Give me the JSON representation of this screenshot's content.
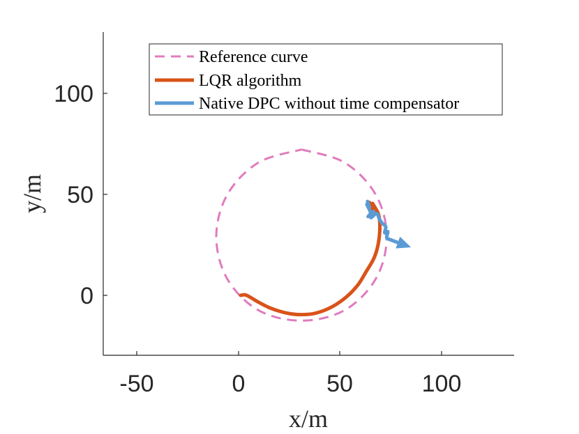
{
  "chart_data": {
    "type": "line",
    "title": "",
    "xlabel": "x/m",
    "ylabel": "y/m",
    "xlim": [
      -67,
      135
    ],
    "ylim": [
      -30,
      130
    ],
    "xticks": [
      -50,
      0,
      50,
      100
    ],
    "yticks": [
      0,
      50,
      100
    ],
    "xtick_labels": [
      "-50",
      "0",
      "50",
      "100"
    ],
    "ytick_labels": [
      "0",
      "50",
      "100"
    ],
    "grid": false,
    "legend_position": "top",
    "series": [
      {
        "name": "Reference curve",
        "style": "dashed",
        "color": "#e07bbd",
        "x": [
          31,
          52.3,
          67.6,
          73.0,
          67.6,
          52.3,
          31,
          9.7,
          -5.6,
          -11.0,
          -5.6,
          9.7,
          31
        ],
        "y": [
          72.2,
          65.7,
          49.8,
          29.0,
          8.2,
          -7.3,
          -12.5,
          -7.3,
          8.2,
          29.0,
          49.8,
          65.7,
          72.2
        ]
      },
      {
        "name": "LQR algorithm",
        "style": "solid",
        "color": "#d95319",
        "x": [
          1,
          3,
          5,
          10,
          15,
          20,
          25,
          30,
          36,
          42,
          48,
          54,
          59,
          63,
          66.5,
          68.5,
          69.5,
          69.5,
          68.8,
          67.5,
          66,
          68,
          65.5,
          64.5
        ],
        "y": [
          0,
          0.3,
          -0.5,
          -3.5,
          -6,
          -7.8,
          -9,
          -9.5,
          -9.2,
          -7.5,
          -4.5,
          0,
          5.5,
          12,
          18,
          24,
          31,
          37,
          40.5,
          43,
          45.5,
          41.5,
          43,
          46
        ]
      },
      {
        "name": "Native DPC without time compensator",
        "style": "solid",
        "color": "#5b9bd5",
        "x": [
          63.5,
          64.5,
          63.2,
          65,
          63.8,
          66.5,
          65.2,
          68,
          69.5,
          71,
          72.5,
          72,
          73.5,
          73,
          75,
          77.5,
          80.5,
          83
        ],
        "y": [
          46.5,
          43.5,
          45,
          41,
          39,
          41.5,
          38.5,
          40.5,
          37.5,
          35.5,
          34,
          31,
          31.5,
          28.5,
          27.5,
          26.5,
          25.5,
          24.5
        ]
      }
    ],
    "legend_entries": [
      "Reference curve",
      "LQR algorithm",
      "Native DPC without time compensator"
    ]
  }
}
